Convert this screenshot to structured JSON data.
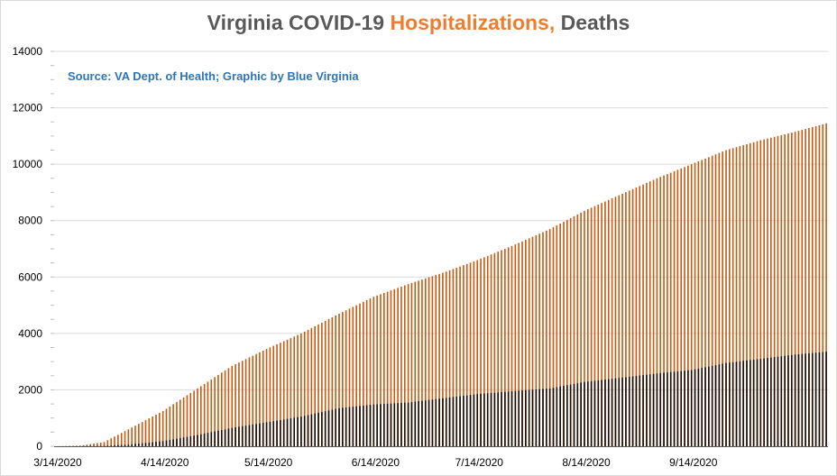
{
  "title": {
    "part1": "Virginia COVID-19 ",
    "part2": "Hospitalizations,",
    "part3": " Deaths"
  },
  "subtitle": "Source: VA Dept. of Health; Graphic by Blue Virginia",
  "chart_data": {
    "type": "bar",
    "title": "Virginia COVID-19 Hospitalizations, Deaths",
    "subtitle": "Source: VA Dept. of Health; Graphic by Blue Virginia",
    "xlabel": "",
    "ylabel": "",
    "ylim": [
      0,
      14000
    ],
    "yticks": [
      0,
      2000,
      4000,
      6000,
      8000,
      10000,
      12000,
      14000
    ],
    "xtick_labels": [
      "3/14/2020",
      "4/14/2020",
      "5/14/2020",
      "6/14/2020",
      "7/14/2020",
      "8/14/2020",
      "9/14/2020"
    ],
    "date_range": [
      "3/14/2020",
      "10/23/2020"
    ],
    "grid": "horizontal",
    "legend": "none",
    "series": [
      {
        "name": "Hospitalizations",
        "color": "#c55a11",
        "anchors": [
          [
            "3/14/2020",
            0
          ],
          [
            "3/21/2020",
            20
          ],
          [
            "3/28/2020",
            150
          ],
          [
            "4/4/2020",
            600
          ],
          [
            "4/14/2020",
            1250
          ],
          [
            "4/24/2020",
            2050
          ],
          [
            "5/4/2020",
            2850
          ],
          [
            "5/14/2020",
            3450
          ],
          [
            "5/24/2020",
            4000
          ],
          [
            "6/4/2020",
            4700
          ],
          [
            "6/14/2020",
            5300
          ],
          [
            "6/24/2020",
            5750
          ],
          [
            "7/4/2020",
            6150
          ],
          [
            "7/14/2020",
            6600
          ],
          [
            "7/24/2020",
            7100
          ],
          [
            "8/4/2020",
            7700
          ],
          [
            "8/14/2020",
            8350
          ],
          [
            "8/24/2020",
            8900
          ],
          [
            "9/4/2020",
            9500
          ],
          [
            "9/14/2020",
            10000
          ],
          [
            "9/24/2020",
            10500
          ],
          [
            "10/4/2020",
            10850
          ],
          [
            "10/14/2020",
            11150
          ],
          [
            "10/23/2020",
            11450
          ]
        ]
      },
      {
        "name": "Deaths",
        "color": "#1a0d06",
        "anchors": [
          [
            "3/14/2020",
            0
          ],
          [
            "3/28/2020",
            15
          ],
          [
            "4/4/2020",
            60
          ],
          [
            "4/14/2020",
            180
          ],
          [
            "4/24/2020",
            400
          ],
          [
            "5/4/2020",
            650
          ],
          [
            "5/14/2020",
            850
          ],
          [
            "5/24/2020",
            1050
          ],
          [
            "6/4/2020",
            1350
          ],
          [
            "6/14/2020",
            1480
          ],
          [
            "6/24/2020",
            1550
          ],
          [
            "7/4/2020",
            1700
          ],
          [
            "7/14/2020",
            1850
          ],
          [
            "7/24/2020",
            1950
          ],
          [
            "8/4/2020",
            2050
          ],
          [
            "8/14/2020",
            2280
          ],
          [
            "8/24/2020",
            2420
          ],
          [
            "9/4/2020",
            2580
          ],
          [
            "9/14/2020",
            2700
          ],
          [
            "9/24/2020",
            2950
          ],
          [
            "10/4/2020",
            3100
          ],
          [
            "10/14/2020",
            3250
          ],
          [
            "10/23/2020",
            3350
          ]
        ]
      }
    ]
  }
}
